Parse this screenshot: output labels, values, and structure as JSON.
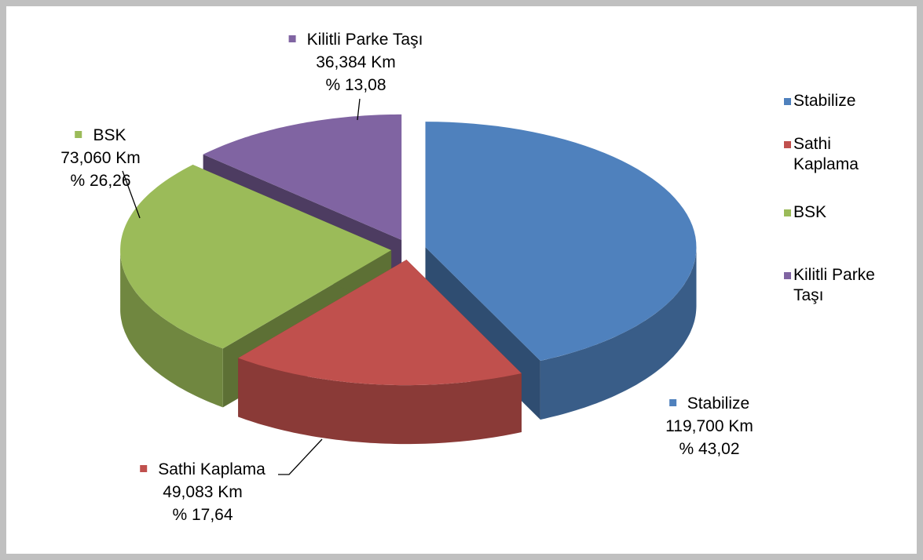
{
  "chart_data": {
    "type": "pie",
    "categories": [
      "Stabilize",
      "Sathi Kaplama",
      "BSK",
      "Kilitli Parke Taşı"
    ],
    "values": [
      119.7,
      49.083,
      73.06,
      36.384
    ],
    "value_labels": [
      "119,700 Km",
      "49,083 Km",
      "73,060 Km",
      "36,384 Km"
    ],
    "percentages": [
      43.02,
      17.64,
      26.26,
      13.08
    ],
    "percent_labels": [
      "% 43,02",
      "% 17,64",
      "% 26,26",
      "% 13,08"
    ],
    "colors": [
      "#4f81bd",
      "#c0504d",
      "#9bbb59",
      "#8064a2"
    ],
    "legend": "right"
  }
}
